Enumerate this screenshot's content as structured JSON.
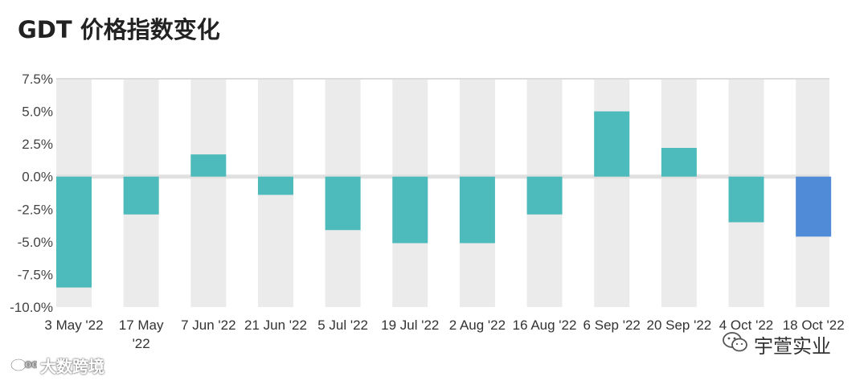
{
  "title": "GDT 价格指数变化",
  "chart_data": {
    "type": "bar",
    "title": "GDT 价格指数变化",
    "categories": [
      "3 May '22",
      "17 May '22",
      "7 Jun '22",
      "21 Jun '22",
      "5 Jul '22",
      "19 Jul '22",
      "2 Aug '22",
      "16 Aug '22",
      "6 Sep '22",
      "20 Sep '22",
      "4 Oct '22",
      "18 Oct '22"
    ],
    "category_lines": [
      [
        "3 May '22"
      ],
      [
        "17 May",
        "'22"
      ],
      [
        "7 Jun '22"
      ],
      [
        "21 Jun '22"
      ],
      [
        "5 Jul '22"
      ],
      [
        "19 Jul '22"
      ],
      [
        "2 Aug '22"
      ],
      [
        "16 Aug '22"
      ],
      [
        "6 Sep '22"
      ],
      [
        "20 Sep '22"
      ],
      [
        "4 Oct '22"
      ],
      [
        "18 Oct '22"
      ]
    ],
    "values": [
      -8.5,
      -2.9,
      1.7,
      -1.4,
      -4.1,
      -5.1,
      -5.1,
      -2.9,
      5.0,
      2.2,
      -3.5,
      -4.6
    ],
    "yticks": [
      "7.5%",
      "5.0%",
      "2.5%",
      "0.0%",
      "-2.5%",
      "-5.0%",
      "-7.5%",
      "-10.0%"
    ],
    "ytick_values": [
      7.5,
      5.0,
      2.5,
      0.0,
      -2.5,
      -5.0,
      -7.5,
      -10.0
    ],
    "ylim": [
      -10,
      7.5
    ],
    "xlabel": "",
    "ylabel": "",
    "colors": {
      "bar": "#4dbabb",
      "highlight": "#4f8bd6",
      "band": "#ebebeb",
      "zero_line": "#e0e0e0"
    },
    "highlight_index": 11
  },
  "watermark": {
    "left_text": "大数跨境",
    "right_text": "宇萱实业",
    "left_icon": "weibo-icon",
    "right_icon": "wechat-icon"
  }
}
